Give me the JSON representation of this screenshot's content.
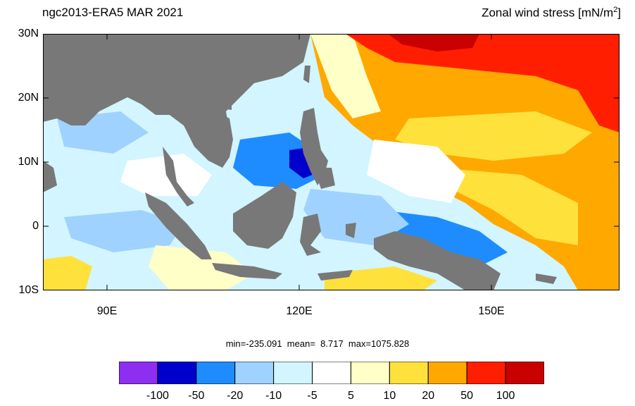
{
  "header": {
    "left_title": "ngc2013-ERA5  MAR 2021",
    "right_title_text": "Zonal wind stress [mN/m",
    "right_title_sup": "2",
    "right_title_close": "]"
  },
  "axes": {
    "lat_ticks": [
      "30N",
      "20N",
      "10N",
      "0",
      "10S"
    ],
    "lon_ticks": [
      "90E",
      "120E",
      "150E"
    ]
  },
  "stats": {
    "text": "min=-235.091  mean=  8.717  max=1075.828"
  },
  "colorbar": {
    "colors": [
      "#8d2ef0",
      "#0000cd",
      "#1e8cff",
      "#a0d2ff",
      "#d2f5ff",
      "#ffffff",
      "#ffffc8",
      "#ffe13c",
      "#ffa800",
      "#ff1e00",
      "#c80000"
    ],
    "labels": [
      "-100",
      "-50",
      "-20",
      "-10",
      "-5",
      "5",
      "10",
      "20",
      "50",
      "100"
    ]
  },
  "map": {
    "land_color": "#787878",
    "region": "South China Sea / Maritime Continent"
  }
}
